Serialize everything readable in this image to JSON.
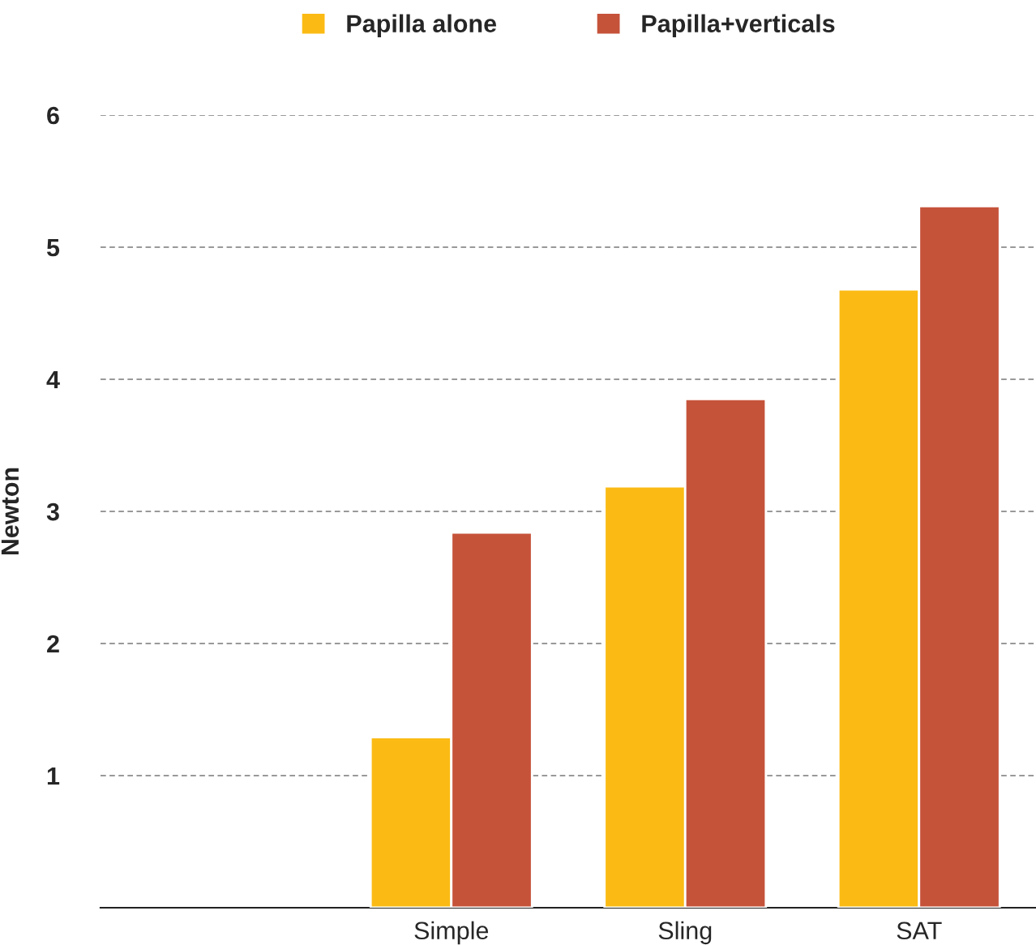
{
  "chart_data": {
    "type": "bar",
    "ylabel": "Newton",
    "categories": [
      null,
      "Simple",
      "Sling",
      "SAT"
    ],
    "series": [
      {
        "name": "Papilla alone",
        "color": "#fbbb14",
        "values": [
          null,
          1.29,
          3.19,
          4.68
        ]
      },
      {
        "name": "Papilla+verticals",
        "color": "#c5533a",
        "values": [
          null,
          2.84,
          3.85,
          5.31
        ]
      }
    ],
    "ylim": [
      0,
      6
    ],
    "yticks": [
      1,
      2,
      3,
      4,
      5,
      6
    ],
    "grid": "y",
    "legend": "top"
  }
}
